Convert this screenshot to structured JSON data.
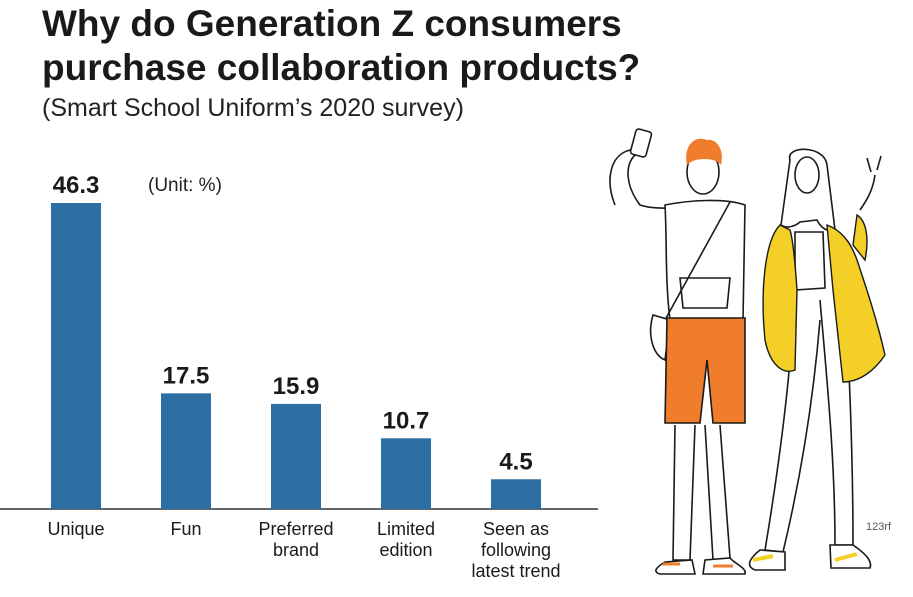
{
  "header": {
    "title_line1": "Why do Generation Z consumers",
    "title_line2": "purchase collaboration products?",
    "subtitle": "(Smart School Uniform’s 2020 survey)"
  },
  "chart_data": {
    "type": "bar",
    "unit_note": "(Unit: %)",
    "categories": [
      [
        "Unique"
      ],
      [
        "Fun"
      ],
      [
        "Preferred",
        "brand"
      ],
      [
        "Limited",
        "edition"
      ],
      [
        "Seen as",
        "following",
        "latest trend"
      ]
    ],
    "values": [
      46.3,
      17.5,
      15.9,
      10.7,
      4.5
    ],
    "value_labels": [
      "46.3",
      "17.5",
      "15.9",
      "10.7",
      "4.5"
    ],
    "ylim": [
      0,
      46.3
    ],
    "bar_color": "#2e6fa3",
    "grid": false
  },
  "credit": "123rf",
  "colors": {
    "orange": "#ef7d2b",
    "yellow": "#f3cf27",
    "ink": "#1a1a1a"
  }
}
